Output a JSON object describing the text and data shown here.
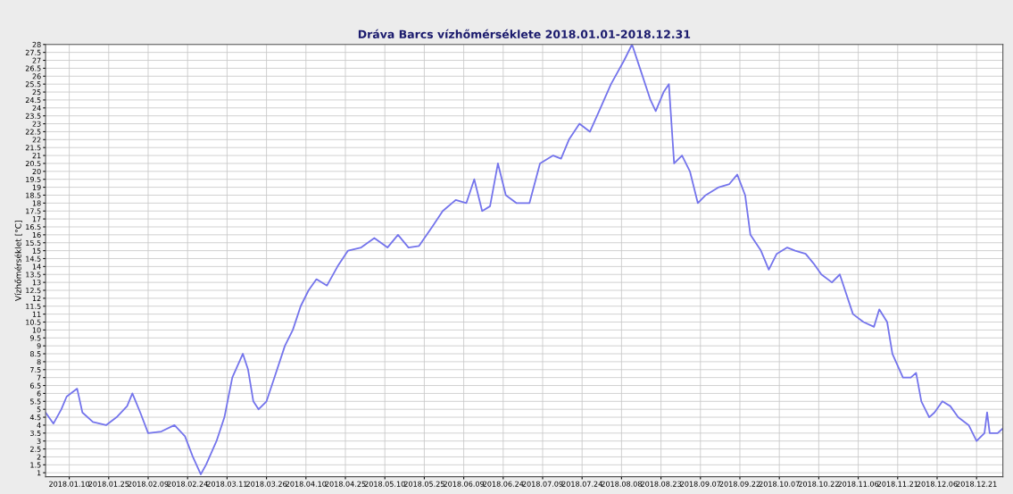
{
  "chart_data": {
    "type": "line",
    "title": "Dráva Barcs vízhőmérséklete 2018.01.01-2018.12.31",
    "ylabel": "Vízhőmérséklet [°C]",
    "x": [
      "2018-01-01",
      "2018-01-04",
      "2018-01-07",
      "2018-01-09",
      "2018-01-13",
      "2018-01-15",
      "2018-01-19",
      "2018-01-24",
      "2018-01-28",
      "2018-02-01",
      "2018-02-03",
      "2018-02-06",
      "2018-02-09",
      "2018-02-14",
      "2018-02-19",
      "2018-02-23",
      "2018-02-26",
      "2018-03-01",
      "2018-03-03",
      "2018-03-07",
      "2018-03-10",
      "2018-03-13",
      "2018-03-17",
      "2018-03-19",
      "2018-03-21",
      "2018-03-23",
      "2018-03-26",
      "2018-03-29",
      "2018-04-02",
      "2018-04-05",
      "2018-04-08",
      "2018-04-11",
      "2018-04-14",
      "2018-04-18",
      "2018-04-22",
      "2018-04-26",
      "2018-05-01",
      "2018-05-06",
      "2018-05-11",
      "2018-05-15",
      "2018-05-19",
      "2018-05-23",
      "2018-05-28",
      "2018-06-01",
      "2018-06-06",
      "2018-06-10",
      "2018-06-13",
      "2018-06-16",
      "2018-06-19",
      "2018-06-22",
      "2018-06-25",
      "2018-06-29",
      "2018-07-04",
      "2018-07-08",
      "2018-07-13",
      "2018-07-16",
      "2018-07-19",
      "2018-07-23",
      "2018-07-27",
      "2018-07-31",
      "2018-08-04",
      "2018-08-09",
      "2018-08-12",
      "2018-08-15",
      "2018-08-19",
      "2018-08-21",
      "2018-08-24",
      "2018-08-26",
      "2018-08-28",
      "2018-08-31",
      "2018-09-03",
      "2018-09-06",
      "2018-09-09",
      "2018-09-14",
      "2018-09-18",
      "2018-09-21",
      "2018-09-24",
      "2018-09-26",
      "2018-09-30",
      "2018-10-03",
      "2018-10-06",
      "2018-10-10",
      "2018-10-13",
      "2018-10-17",
      "2018-10-20",
      "2018-10-23",
      "2018-10-27",
      "2018-10-30",
      "2018-11-01",
      "2018-11-04",
      "2018-11-08",
      "2018-11-12",
      "2018-11-14",
      "2018-11-17",
      "2018-11-19",
      "2018-11-23",
      "2018-11-26",
      "2018-11-28",
      "2018-11-30",
      "2018-12-03",
      "2018-12-05",
      "2018-12-08",
      "2018-12-11",
      "2018-12-14",
      "2018-12-18",
      "2018-12-21",
      "2018-12-24",
      "2018-12-25",
      "2018-12-26",
      "2018-12-29",
      "2018-12-31"
    ],
    "series": [
      {
        "color": "#7474ec",
        "values": [
          4.8,
          4.1,
          5.0,
          5.8,
          6.3,
          4.8,
          4.2,
          4.0,
          4.5,
          5.2,
          6.0,
          4.8,
          3.5,
          3.6,
          4.0,
          3.3,
          2.0,
          0.9,
          1.5,
          3.0,
          4.5,
          7.0,
          8.5,
          7.5,
          5.5,
          5.0,
          5.5,
          7.0,
          9.0,
          10.0,
          11.5,
          12.5,
          13.2,
          12.8,
          14.0,
          15.0,
          15.2,
          15.8,
          15.2,
          16.0,
          15.2,
          15.3,
          16.5,
          17.5,
          18.2,
          18.0,
          19.5,
          17.5,
          17.8,
          20.5,
          18.5,
          18.0,
          18.0,
          20.5,
          21.0,
          20.8,
          22.0,
          23.0,
          22.5,
          24.0,
          25.5,
          27.0,
          28.0,
          26.5,
          24.5,
          23.8,
          25.0,
          25.5,
          20.5,
          21.0,
          20.0,
          18.0,
          18.5,
          19.0,
          19.2,
          19.8,
          18.5,
          16.0,
          15.0,
          13.8,
          14.8,
          15.2,
          15.0,
          14.8,
          14.2,
          13.5,
          13.0,
          13.5,
          12.5,
          11.0,
          10.5,
          10.2,
          11.3,
          10.5,
          8.5,
          7.0,
          7.0,
          7.3,
          5.5,
          4.5,
          4.8,
          5.5,
          5.2,
          4.5,
          4.0,
          3.0,
          3.5,
          4.8,
          3.5,
          3.5,
          3.8
        ]
      }
    ],
    "xlim": [
      "2018-01-01",
      "2018-12-31"
    ],
    "xticks": [
      {
        "value": "2018-01-10",
        "label": "2018.01.10"
      },
      {
        "value": "2018-01-25",
        "label": "2018.01.25"
      },
      {
        "value": "2018-02-09",
        "label": "2018.02.09"
      },
      {
        "value": "2018-02-24",
        "label": "2018.02.24"
      },
      {
        "value": "2018-03-11",
        "label": "2018.03.11"
      },
      {
        "value": "2018-03-26",
        "label": "2018.03.26"
      },
      {
        "value": "2018-04-10",
        "label": "2018.04.10"
      },
      {
        "value": "2018-04-25",
        "label": "2018.04.25"
      },
      {
        "value": "2018-05-10",
        "label": "2018.05.10"
      },
      {
        "value": "2018-05-25",
        "label": "2018.05.25"
      },
      {
        "value": "2018-06-09",
        "label": "2018.06.09"
      },
      {
        "value": "2018-06-24",
        "label": "2018.06.24"
      },
      {
        "value": "2018-07-09",
        "label": "2018.07.09"
      },
      {
        "value": "2018-07-24",
        "label": "2018.07.24"
      },
      {
        "value": "2018-08-08",
        "label": "2018.08.08"
      },
      {
        "value": "2018-08-23",
        "label": "2018.08.23"
      },
      {
        "value": "2018-09-07",
        "label": "2018.09.07"
      },
      {
        "value": "2018-09-22",
        "label": "2018.09.22"
      },
      {
        "value": "2018-10-07",
        "label": "2018.10.07"
      },
      {
        "value": "2018-10-22",
        "label": "2018.10.22"
      },
      {
        "value": "2018-11-06",
        "label": "2018.11.06"
      },
      {
        "value": "2018-11-21",
        "label": "2018.11.21"
      },
      {
        "value": "2018-12-06",
        "label": "2018.12.06"
      },
      {
        "value": "2018-12-21",
        "label": "2018.12.21"
      }
    ],
    "ylim": [
      0.75,
      28
    ],
    "yticks": [
      1,
      1.5,
      2,
      2.5,
      3,
      3.5,
      4,
      4.5,
      5,
      5.5,
      6,
      6.5,
      7,
      7.5,
      8,
      8.5,
      9,
      9.5,
      10,
      10.5,
      11,
      11.5,
      12,
      12.5,
      13,
      13.5,
      14,
      14.5,
      15,
      15.5,
      16,
      16.5,
      17,
      17.5,
      18,
      18.5,
      19,
      19.5,
      20,
      20.5,
      21,
      21.5,
      22,
      22.5,
      23,
      23.5,
      24,
      24.5,
      25,
      25.5,
      26,
      26.5,
      27,
      27.5,
      28
    ],
    "grid": true,
    "marker": "none",
    "line_style": "solid"
  }
}
